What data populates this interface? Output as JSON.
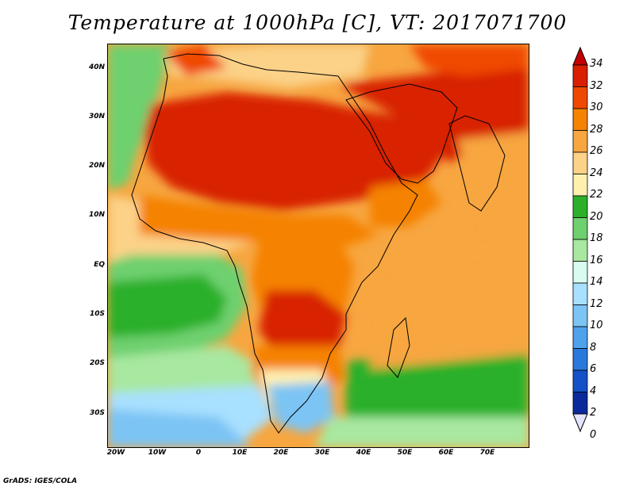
{
  "title": "Temperature at 1000hPa [C], VT: 2017071700",
  "credit": "GrADS: IGES/COLA",
  "lat_labels": [
    "40N",
    "30N",
    "20N",
    "10N",
    "EQ",
    "10S",
    "20S",
    "30S"
  ],
  "lon_labels": [
    "20W",
    "10W",
    "0",
    "10E",
    "20E",
    "30E",
    "40E",
    "50E",
    "60E",
    "70E"
  ],
  "colorbar": {
    "labels": [
      "34",
      "32",
      "30",
      "28",
      "26",
      "24",
      "22",
      "20",
      "18",
      "16",
      "14",
      "12",
      "10",
      "8",
      "6",
      "4",
      "2",
      "0"
    ],
    "colors": [
      "#a50000",
      "#d82000",
      "#f04800",
      "#f58200",
      "#f7a640",
      "#fbd288",
      "#fff0b0",
      "#2cb02c",
      "#6ed06e",
      "#a8e8a0",
      "#d8fcf0",
      "#a8e0ff",
      "#7cc4f4",
      "#4ea2ec",
      "#2a78dc",
      "#1450c8",
      "#0a2a9c",
      "#081860"
    ],
    "max_arrow_color": "#c40000",
    "min_arrow_color": "#e4e4ff"
  }
}
